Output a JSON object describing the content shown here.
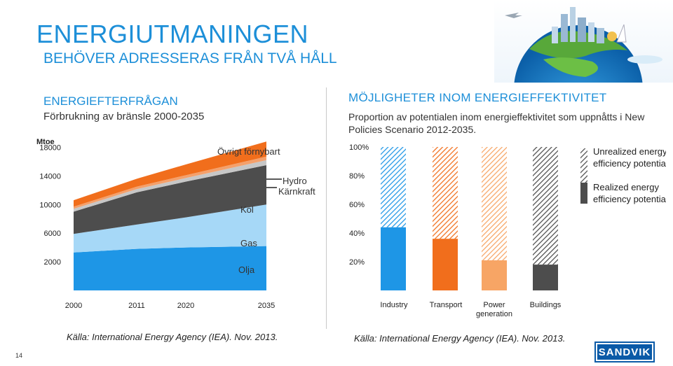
{
  "slide": {
    "title": "ENERGIUTMANINGEN",
    "subtitle": "BEHÖVER ADRESSERAS FRÅN TVÅ HÅLL",
    "page_number": "14",
    "logo_text": "SANDVIK"
  },
  "left_panel": {
    "heading": "ENERGIEFTERFRÅGAN",
    "subheading": "Förbrukning av bränsle 2000-2035",
    "source": "Källa: International Energy Agency (IEA). Nov. 2013."
  },
  "right_panel": {
    "heading": "MÖJLIGHETER INOM ENERGIEFFEKTIVITET",
    "subheading": "Proportion av potentialen inom energieffektivitet som uppnåtts i New Policies Scenario 2012-2035.",
    "source": "Källa: International Energy Agency (IEA). Nov. 2013."
  },
  "chart_data": [
    {
      "type": "area",
      "stacked": true,
      "ylabel": "Mtoe",
      "yticks": [
        2000,
        6000,
        10000,
        14000,
        18000
      ],
      "ylim": [
        -2000,
        20000
      ],
      "categories": [
        "2000",
        "2011",
        "2020",
        "2035"
      ],
      "series": [
        {
          "name": "Olja",
          "color": "#1e96e6",
          "values": [
            3300,
            3800,
            4000,
            4200
          ]
        },
        {
          "name": "Gas",
          "color": "#a6d8f7",
          "values": [
            2600,
            3400,
            4200,
            5800
          ]
        },
        {
          "name": "Kol",
          "color": "#4d4d4d",
          "values": [
            3100,
            4500,
            5000,
            5500
          ]
        },
        {
          "name": "Kärnkraft",
          "color": "#c7c7c7",
          "values": [
            400,
            450,
            500,
            700
          ]
        },
        {
          "name": "Hydro",
          "color": "#f4a06b",
          "values": [
            300,
            350,
            400,
            500
          ]
        },
        {
          "name": "Övrigt förnybart",
          "color": "#f16e1c",
          "values": [
            900,
            1100,
            1500,
            2100
          ]
        }
      ],
      "series_labels": [
        "Olja",
        "Gas",
        "Kol",
        "Kärnkraft",
        "Hydro",
        "Övrigt förnybart"
      ]
    },
    {
      "type": "bar",
      "stacked": true,
      "categories": [
        "Industry",
        "Transport",
        "Power generation",
        "Buildings"
      ],
      "ylim": [
        0,
        100
      ],
      "yticks": [
        "20%",
        "40%",
        "60%",
        "80%",
        "100%"
      ],
      "series": [
        {
          "name": "Realized energy efficiency potential",
          "values": [
            44,
            36,
            21,
            18
          ],
          "colors": [
            "#1e96e6",
            "#f16e1c",
            "#f7a565",
            "#4d4d4d"
          ]
        },
        {
          "name": "Unrealized energy efficiency potential",
          "values": [
            56,
            64,
            79,
            82
          ],
          "pattern": "hatched"
        }
      ],
      "legend": [
        {
          "label": "Unrealized energy efficiency potential",
          "style": "hatched"
        },
        {
          "label": "Realized energy efficiency potential",
          "style": "solid",
          "color": "#4d4d4d"
        }
      ],
      "legend_position": "top-right"
    }
  ]
}
